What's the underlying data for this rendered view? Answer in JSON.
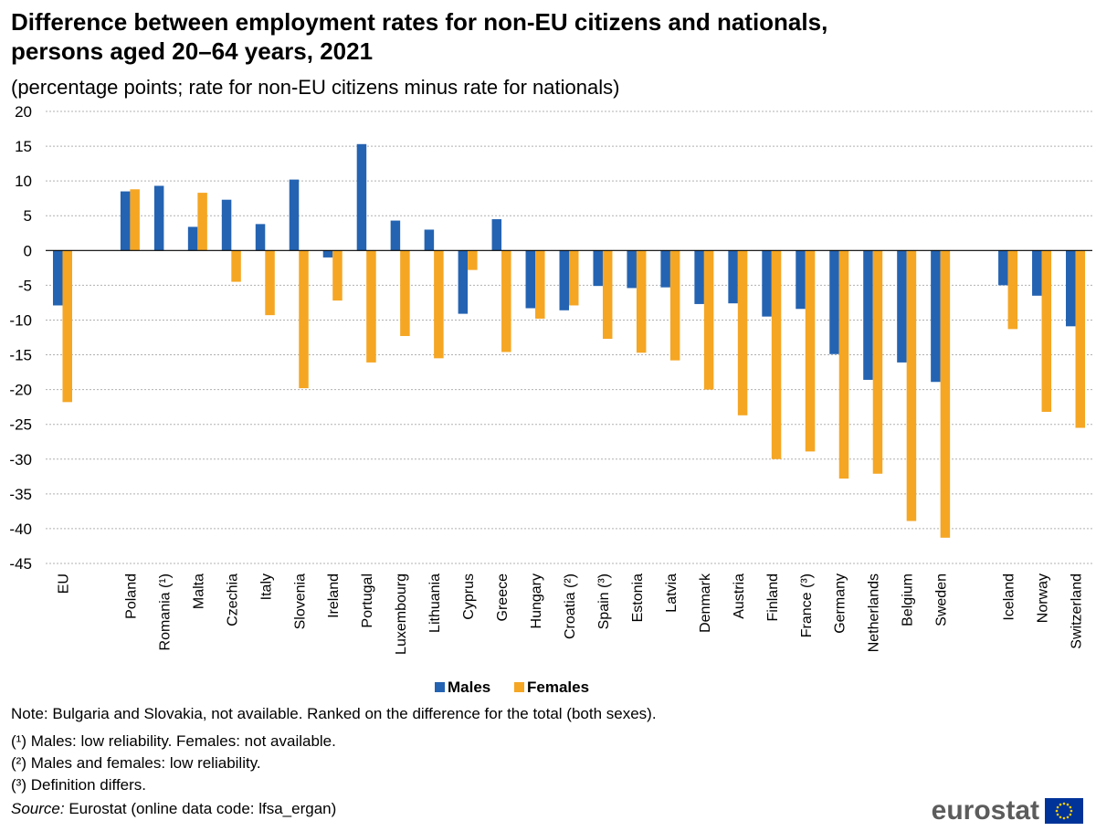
{
  "chart_data": {
    "type": "bar",
    "title": "Difference between employment rates for non-EU citizens and nationals, persons aged 20–64 years, 2021",
    "subtitle": "(percentage points; rate for non-EU citizens minus rate for nationals)",
    "xlabel": "",
    "ylabel": "",
    "ylim": [
      -45,
      20
    ],
    "yticks": [
      20,
      15,
      10,
      5,
      0,
      -5,
      -10,
      -15,
      -20,
      -25,
      -30,
      -35,
      -40,
      -45
    ],
    "grid": true,
    "legend_position": "bottom-center",
    "categories": [
      "EU",
      "",
      "Poland",
      "Romania (¹)",
      "Malta",
      "Czechia",
      "Italy",
      "Slovenia",
      "Ireland",
      "Portugal",
      "Luxembourg",
      "Lithuania",
      "Cyprus",
      "Greece",
      "Hungary",
      "Croatia (²)",
      "Spain (³)",
      "Estonia",
      "Latvia",
      "Denmark",
      "Austria",
      "Finland",
      "France (³)",
      "Germany",
      "Netherlands",
      "Belgium",
      "Sweden",
      "",
      "Iceland",
      "Norway",
      "Switzerland"
    ],
    "series": [
      {
        "name": "Males",
        "color": "#2463b2",
        "values": [
          -7.9,
          null,
          8.5,
          9.3,
          3.4,
          7.3,
          3.8,
          10.2,
          -1.0,
          15.3,
          4.3,
          3.0,
          -9.1,
          4.5,
          -8.3,
          -8.6,
          -5.1,
          -5.4,
          -5.3,
          -7.7,
          -7.6,
          -9.5,
          -8.4,
          -14.9,
          -18.6,
          -16.1,
          -18.9,
          null,
          -5.0,
          -6.5,
          -10.9
        ]
      },
      {
        "name": "Females",
        "color": "#f5a623",
        "values": [
          -21.8,
          null,
          8.8,
          null,
          8.3,
          -4.5,
          -9.3,
          -19.8,
          -7.2,
          -16.1,
          -12.3,
          -15.5,
          -2.8,
          -14.6,
          -9.8,
          -7.9,
          -12.7,
          -14.7,
          -15.8,
          -20.0,
          -23.7,
          -30.0,
          -28.9,
          -32.8,
          -32.1,
          -38.9,
          -41.3,
          null,
          -11.3,
          -23.2,
          -25.5
        ]
      }
    ]
  },
  "legend": {
    "males": "Males",
    "females": "Females"
  },
  "footer": {
    "note": "Note: Bulgaria and Slovakia, not available. Ranked on the difference for the total (both sexes).",
    "fn1": "(¹) Males: low reliability. Females: not available.",
    "fn2": "(²) Males and females: low reliability.",
    "fn3": "(³) Definition differs.",
    "source_label": "Source:",
    "source_text": " Eurostat (online data code: lfsa_ergan)"
  },
  "logo": {
    "text": "eurostat",
    "flag_color": "#003399",
    "star_color": "#ffcc00"
  }
}
